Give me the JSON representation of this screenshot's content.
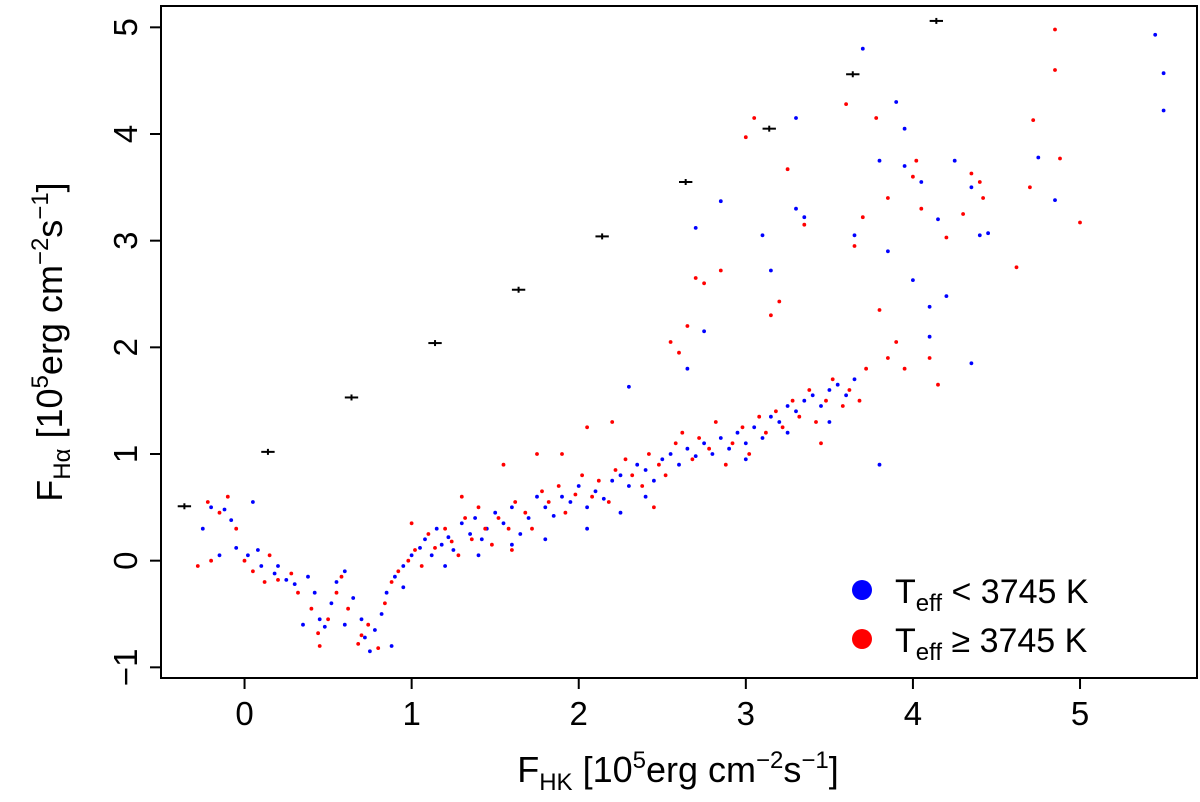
{
  "chart_data": {
    "type": "scatter",
    "title": "",
    "xlabel": {
      "main": "F",
      "sub": "HK",
      "pre": " [10",
      "exp1": "5",
      "mid": "erg cm",
      "exp2": "−2",
      "s": "s",
      "exp3": "−1",
      "close": "]"
    },
    "ylabel": {
      "main": "F",
      "sub": "Hα",
      "pre": " [10",
      "exp1": "5",
      "mid": "erg cm",
      "exp2": "−2",
      "s": "s",
      "exp3": "−1",
      "close": "]"
    },
    "xlim": [
      -0.5,
      5.7
    ],
    "ylim": [
      -1.1,
      5.2
    ],
    "x_ticks": [
      0,
      1,
      2,
      3,
      4,
      5
    ],
    "x_tick_labels": [
      "0",
      "1",
      "2",
      "3",
      "4",
      "5"
    ],
    "y_ticks": [
      -1,
      0,
      1,
      2,
      3,
      4,
      5
    ],
    "y_tick_labels": [
      "−1",
      "0",
      "1",
      "2",
      "3",
      "4",
      "5"
    ],
    "grid": false,
    "legend_position": "bottom-right",
    "series": [
      {
        "name": "T_eff < 3745 K",
        "legend": {
          "main": "T",
          "sub": "eff",
          "rest": " < 3745 K"
        },
        "color": "#0000ff",
        "points": [
          [
            -0.2,
            0.5
          ],
          [
            -0.12,
            0.48
          ],
          [
            -0.08,
            0.38
          ],
          [
            -0.05,
            0.12
          ],
          [
            0.02,
            0.05
          ],
          [
            0.08,
            0.1
          ],
          [
            -0.15,
            0.05
          ],
          [
            0.1,
            -0.05
          ],
          [
            0.18,
            -0.12
          ],
          [
            0.25,
            -0.18
          ],
          [
            0.3,
            -0.22
          ],
          [
            0.38,
            -0.15
          ],
          [
            0.42,
            -0.3
          ],
          [
            0.45,
            -0.55
          ],
          [
            0.48,
            -0.62
          ],
          [
            0.35,
            -0.6
          ],
          [
            0.52,
            -0.4
          ],
          [
            0.55,
            -0.2
          ],
          [
            0.6,
            -0.1
          ],
          [
            0.65,
            -0.35
          ],
          [
            0.7,
            -0.55
          ],
          [
            0.72,
            -0.72
          ],
          [
            0.78,
            -0.65
          ],
          [
            0.82,
            -0.5
          ],
          [
            0.85,
            -0.3
          ],
          [
            0.9,
            -0.15
          ],
          [
            0.95,
            -0.05
          ],
          [
            1.0,
            0.05
          ],
          [
            1.05,
            0.12
          ],
          [
            1.08,
            0.2
          ],
          [
            1.12,
            0.05
          ],
          [
            1.15,
            0.3
          ],
          [
            1.18,
            0.15
          ],
          [
            1.22,
            0.22
          ],
          [
            1.25,
            0.1
          ],
          [
            1.3,
            0.35
          ],
          [
            1.35,
            0.25
          ],
          [
            1.38,
            0.4
          ],
          [
            1.42,
            0.2
          ],
          [
            1.45,
            0.3
          ],
          [
            1.5,
            0.45
          ],
          [
            1.55,
            0.35
          ],
          [
            1.6,
            0.5
          ],
          [
            1.65,
            0.25
          ],
          [
            1.7,
            0.4
          ],
          [
            1.75,
            0.6
          ],
          [
            1.8,
            0.5
          ],
          [
            1.85,
            0.42
          ],
          [
            1.9,
            0.6
          ],
          [
            1.95,
            0.55
          ],
          [
            2.0,
            0.7
          ],
          [
            2.05,
            0.5
          ],
          [
            2.1,
            0.65
          ],
          [
            2.15,
            0.58
          ],
          [
            2.2,
            0.75
          ],
          [
            2.25,
            0.8
          ],
          [
            2.3,
            0.7
          ],
          [
            2.35,
            0.9
          ],
          [
            2.4,
            0.85
          ],
          [
            2.45,
            0.75
          ],
          [
            2.5,
            0.95
          ],
          [
            2.55,
            1.0
          ],
          [
            2.6,
            0.9
          ],
          [
            2.65,
            1.05
          ],
          [
            2.7,
            0.98
          ],
          [
            2.75,
            1.1
          ],
          [
            2.8,
            1.0
          ],
          [
            2.85,
            1.15
          ],
          [
            2.9,
            1.05
          ],
          [
            2.95,
            1.2
          ],
          [
            3.0,
            1.1
          ],
          [
            3.05,
            1.25
          ],
          [
            3.1,
            1.15
          ],
          [
            3.15,
            1.35
          ],
          [
            3.2,
            1.3
          ],
          [
            3.25,
            1.45
          ],
          [
            3.3,
            1.4
          ],
          [
            3.35,
            1.5
          ],
          [
            3.4,
            1.55
          ],
          [
            3.45,
            1.45
          ],
          [
            3.5,
            1.6
          ],
          [
            3.55,
            1.65
          ],
          [
            3.6,
            1.55
          ],
          [
            3.65,
            1.7
          ],
          [
            3.3,
            3.3
          ],
          [
            3.3,
            4.15
          ],
          [
            3.35,
            3.22
          ],
          [
            3.1,
            3.05
          ],
          [
            3.15,
            2.72
          ],
          [
            2.85,
            3.37
          ],
          [
            2.65,
            1.8
          ],
          [
            2.7,
            3.12
          ],
          [
            2.75,
            2.15
          ],
          [
            2.3,
            1.63
          ],
          [
            3.7,
            4.8
          ],
          [
            3.65,
            3.05
          ],
          [
            3.85,
            2.9
          ],
          [
            3.9,
            4.3
          ],
          [
            3.95,
            3.7
          ],
          [
            4.0,
            2.63
          ],
          [
            4.05,
            3.55
          ],
          [
            4.1,
            2.38
          ],
          [
            4.15,
            3.2
          ],
          [
            4.2,
            2.48
          ],
          [
            4.25,
            3.75
          ],
          [
            4.35,
            3.5
          ],
          [
            4.4,
            3.05
          ],
          [
            4.45,
            3.07
          ],
          [
            4.75,
            3.78
          ],
          [
            4.85,
            3.38
          ],
          [
            5.45,
            4.93
          ],
          [
            5.5,
            4.57
          ],
          [
            5.5,
            4.22
          ],
          [
            3.8,
            3.75
          ],
          [
            3.95,
            4.05
          ],
          [
            4.1,
            2.1
          ],
          [
            3.8,
            0.9
          ],
          [
            4.35,
            1.85
          ],
          [
            -0.25,
            0.3
          ],
          [
            0.05,
            0.55
          ],
          [
            0.2,
            -0.05
          ],
          [
            1.6,
            0.15
          ],
          [
            1.4,
            0.05
          ],
          [
            1.2,
            -0.05
          ],
          [
            0.95,
            -0.25
          ],
          [
            0.6,
            -0.6
          ],
          [
            0.75,
            -0.85
          ],
          [
            0.88,
            -0.8
          ],
          [
            2.05,
            0.3
          ],
          [
            2.25,
            0.45
          ],
          [
            2.4,
            0.6
          ],
          [
            1.8,
            0.2
          ],
          [
            3.0,
            0.95
          ],
          [
            3.25,
            1.2
          ],
          [
            3.5,
            1.3
          ]
        ]
      },
      {
        "name": "T_eff ≥ 3745 K",
        "legend": {
          "main": "T",
          "sub": "eff",
          "rest": " ≥ 3745 K"
        },
        "color": "#ff0000",
        "points": [
          [
            -0.22,
            0.55
          ],
          [
            -0.15,
            0.45
          ],
          [
            -0.1,
            0.6
          ],
          [
            -0.05,
            0.3
          ],
          [
            0.0,
            0.0
          ],
          [
            0.05,
            -0.1
          ],
          [
            -0.2,
            0.0
          ],
          [
            0.12,
            -0.2
          ],
          [
            0.2,
            -0.18
          ],
          [
            0.28,
            -0.12
          ],
          [
            0.32,
            -0.3
          ],
          [
            0.4,
            -0.45
          ],
          [
            0.44,
            -0.68
          ],
          [
            0.5,
            -0.55
          ],
          [
            0.55,
            -0.3
          ],
          [
            0.58,
            -0.15
          ],
          [
            0.62,
            -0.45
          ],
          [
            0.68,
            -0.78
          ],
          [
            0.74,
            -0.6
          ],
          [
            0.8,
            -0.82
          ],
          [
            0.84,
            -0.4
          ],
          [
            0.88,
            -0.2
          ],
          [
            0.92,
            -0.1
          ],
          [
            0.98,
            0.0
          ],
          [
            1.02,
            0.1
          ],
          [
            1.06,
            -0.05
          ],
          [
            1.1,
            0.25
          ],
          [
            1.14,
            0.12
          ],
          [
            1.2,
            0.3
          ],
          [
            1.24,
            0.18
          ],
          [
            1.28,
            0.05
          ],
          [
            1.32,
            0.4
          ],
          [
            1.36,
            0.2
          ],
          [
            1.4,
            0.5
          ],
          [
            1.44,
            0.3
          ],
          [
            1.48,
            0.15
          ],
          [
            1.52,
            0.4
          ],
          [
            1.58,
            0.3
          ],
          [
            1.62,
            0.55
          ],
          [
            1.68,
            0.45
          ],
          [
            1.72,
            0.3
          ],
          [
            1.78,
            0.65
          ],
          [
            1.82,
            0.55
          ],
          [
            1.88,
            0.7
          ],
          [
            1.92,
            0.45
          ],
          [
            1.98,
            0.62
          ],
          [
            2.02,
            0.8
          ],
          [
            2.08,
            0.6
          ],
          [
            2.12,
            0.75
          ],
          [
            2.18,
            0.55
          ],
          [
            2.22,
            0.85
          ],
          [
            2.28,
            0.95
          ],
          [
            2.32,
            0.8
          ],
          [
            2.38,
            0.7
          ],
          [
            2.42,
            1.0
          ],
          [
            2.48,
            0.9
          ],
          [
            2.52,
            0.8
          ],
          [
            2.58,
            1.1
          ],
          [
            2.62,
            1.2
          ],
          [
            2.68,
            0.95
          ],
          [
            2.72,
            1.15
          ],
          [
            2.78,
            1.05
          ],
          [
            2.82,
            1.3
          ],
          [
            2.88,
            0.9
          ],
          [
            2.92,
            1.1
          ],
          [
            2.98,
            1.25
          ],
          [
            3.02,
            1.0
          ],
          [
            3.08,
            1.35
          ],
          [
            3.12,
            1.2
          ],
          [
            3.18,
            1.4
          ],
          [
            3.22,
            1.25
          ],
          [
            3.28,
            1.5
          ],
          [
            3.32,
            1.35
          ],
          [
            3.38,
            1.6
          ],
          [
            3.42,
            1.3
          ],
          [
            3.48,
            1.5
          ],
          [
            3.52,
            1.7
          ],
          [
            3.58,
            1.45
          ],
          [
            3.62,
            1.6
          ],
          [
            3.68,
            1.5
          ],
          [
            3.72,
            1.8
          ],
          [
            2.55,
            2.05
          ],
          [
            2.6,
            1.95
          ],
          [
            2.65,
            2.2
          ],
          [
            2.7,
            2.65
          ],
          [
            2.75,
            2.6
          ],
          [
            2.85,
            2.72
          ],
          [
            3.0,
            3.97
          ],
          [
            3.05,
            4.15
          ],
          [
            3.15,
            2.3
          ],
          [
            3.2,
            2.43
          ],
          [
            3.25,
            3.67
          ],
          [
            3.35,
            3.15
          ],
          [
            3.6,
            4.28
          ],
          [
            3.65,
            2.95
          ],
          [
            3.7,
            3.22
          ],
          [
            3.78,
            4.15
          ],
          [
            3.8,
            2.35
          ],
          [
            3.85,
            3.4
          ],
          [
            3.9,
            2.05
          ],
          [
            3.95,
            1.8
          ],
          [
            4.0,
            3.6
          ],
          [
            4.02,
            3.75
          ],
          [
            4.05,
            3.3
          ],
          [
            4.1,
            1.9
          ],
          [
            4.15,
            1.65
          ],
          [
            4.2,
            3.03
          ],
          [
            4.3,
            3.25
          ],
          [
            4.35,
            3.63
          ],
          [
            4.4,
            3.55
          ],
          [
            4.42,
            3.4
          ],
          [
            4.62,
            2.75
          ],
          [
            4.7,
            3.5
          ],
          [
            4.72,
            4.13
          ],
          [
            4.85,
            4.98
          ],
          [
            4.85,
            4.6
          ],
          [
            4.88,
            3.77
          ],
          [
            5.0,
            3.17
          ],
          [
            1.55,
            0.9
          ],
          [
            1.9,
            1.0
          ],
          [
            2.2,
            1.3
          ],
          [
            2.05,
            1.25
          ],
          [
            1.75,
            1.0
          ],
          [
            -0.28,
            -0.05
          ],
          [
            0.15,
            0.05
          ],
          [
            1.3,
            0.6
          ],
          [
            1.0,
            0.35
          ],
          [
            1.6,
            0.1
          ],
          [
            0.45,
            -0.8
          ],
          [
            0.7,
            -0.7
          ],
          [
            2.45,
            0.5
          ],
          [
            3.45,
            1.1
          ],
          [
            3.85,
            1.9
          ]
        ]
      },
      {
        "name": "reference bars",
        "color": "#000000",
        "error": 0.04,
        "points": [
          [
            -0.36,
            0.51
          ],
          [
            0.14,
            1.02
          ],
          [
            0.64,
            1.53
          ],
          [
            1.14,
            2.04
          ],
          [
            1.64,
            2.54
          ],
          [
            2.14,
            3.04
          ],
          [
            2.64,
            3.55
          ],
          [
            3.14,
            4.05
          ],
          [
            3.64,
            4.56
          ],
          [
            4.14,
            5.06
          ]
        ]
      }
    ]
  }
}
